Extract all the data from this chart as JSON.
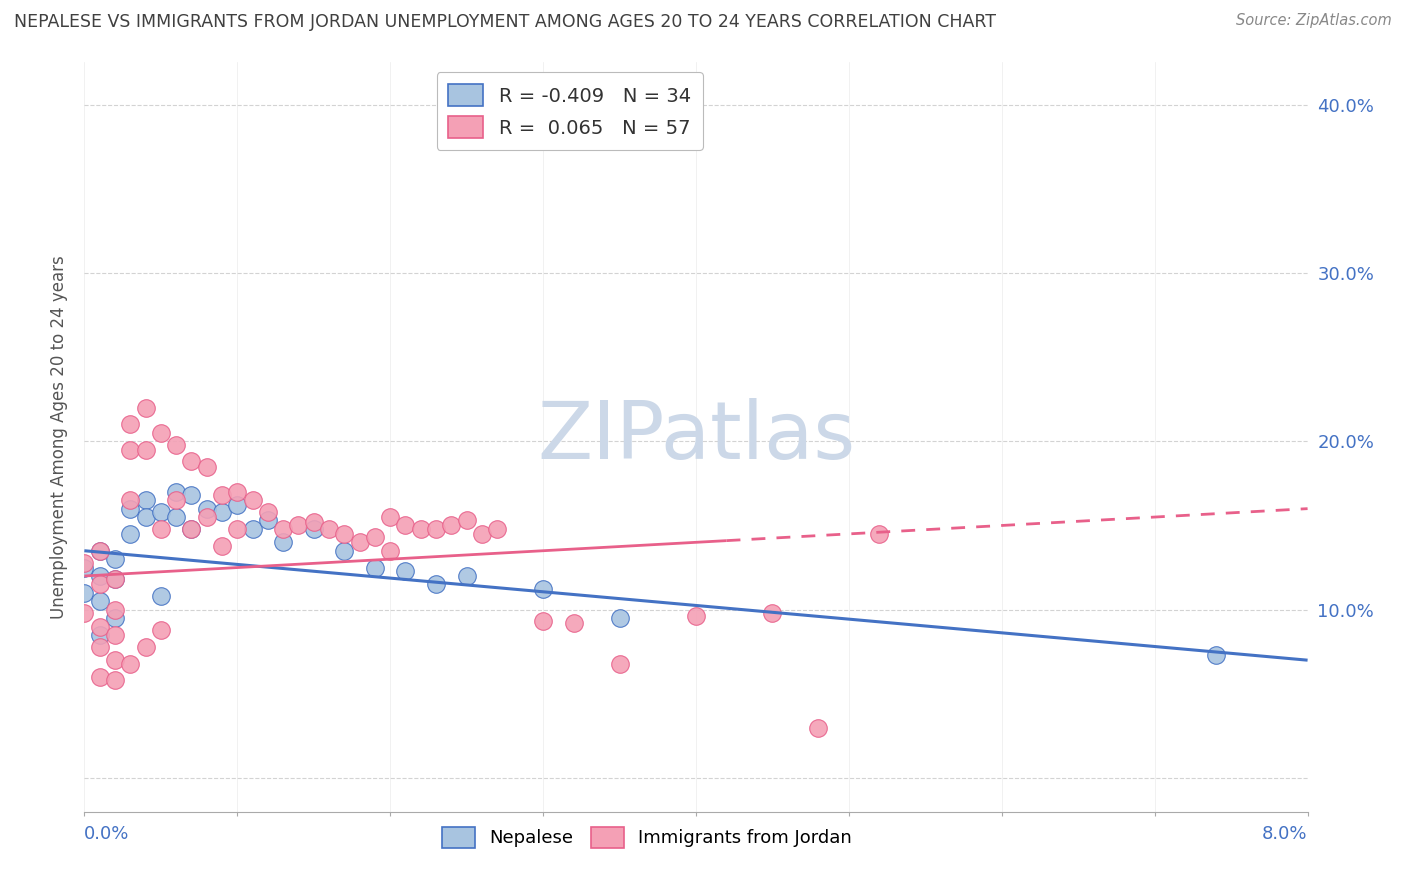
{
  "title": "NEPALESE VS IMMIGRANTS FROM JORDAN UNEMPLOYMENT AMONG AGES 20 TO 24 YEARS CORRELATION CHART",
  "source": "Source: ZipAtlas.com",
  "ylabel": "Unemployment Among Ages 20 to 24 years",
  "legend_label1": "Nepalese",
  "legend_label2": "Immigrants from Jordan",
  "r1": "-0.409",
  "n1": "34",
  "r2": "0.065",
  "n2": "57",
  "color_nepalese": "#a8c4e0",
  "color_jordan": "#f4a0b5",
  "color_nepalese_line": "#4472c4",
  "color_jordan_line": "#e8608a",
  "color_axis_labels": "#4472c4",
  "color_title": "#404040",
  "watermark_color": "#ccd8e8",
  "xlim": [
    0.0,
    0.08
  ],
  "ylim": [
    -0.02,
    0.425
  ],
  "ytick_vals": [
    0.0,
    0.1,
    0.2,
    0.3,
    0.4
  ],
  "nep_x": [
    0.0,
    0.0,
    0.001,
    0.001,
    0.001,
    0.001,
    0.002,
    0.002,
    0.002,
    0.003,
    0.003,
    0.004,
    0.004,
    0.005,
    0.005,
    0.006,
    0.006,
    0.007,
    0.007,
    0.008,
    0.009,
    0.01,
    0.011,
    0.012,
    0.013,
    0.015,
    0.017,
    0.019,
    0.021,
    0.023,
    0.025,
    0.03,
    0.035,
    0.074
  ],
  "nep_y": [
    0.125,
    0.11,
    0.135,
    0.12,
    0.105,
    0.085,
    0.13,
    0.118,
    0.095,
    0.16,
    0.145,
    0.165,
    0.155,
    0.158,
    0.108,
    0.17,
    0.155,
    0.168,
    0.148,
    0.16,
    0.158,
    0.162,
    0.148,
    0.153,
    0.14,
    0.148,
    0.135,
    0.125,
    0.123,
    0.115,
    0.12,
    0.112,
    0.095,
    0.073
  ],
  "jor_x": [
    0.0,
    0.0,
    0.001,
    0.001,
    0.001,
    0.001,
    0.001,
    0.002,
    0.002,
    0.002,
    0.002,
    0.002,
    0.003,
    0.003,
    0.003,
    0.003,
    0.004,
    0.004,
    0.004,
    0.005,
    0.005,
    0.005,
    0.006,
    0.006,
    0.007,
    0.007,
    0.008,
    0.008,
    0.009,
    0.009,
    0.01,
    0.01,
    0.011,
    0.012,
    0.013,
    0.014,
    0.015,
    0.016,
    0.017,
    0.018,
    0.019,
    0.02,
    0.02,
    0.021,
    0.022,
    0.023,
    0.024,
    0.025,
    0.026,
    0.027,
    0.03,
    0.032,
    0.035,
    0.04,
    0.045,
    0.048,
    0.052
  ],
  "jor_y": [
    0.128,
    0.098,
    0.135,
    0.115,
    0.09,
    0.078,
    0.06,
    0.118,
    0.1,
    0.085,
    0.07,
    0.058,
    0.21,
    0.195,
    0.165,
    0.068,
    0.22,
    0.195,
    0.078,
    0.205,
    0.148,
    0.088,
    0.198,
    0.165,
    0.188,
    0.148,
    0.185,
    0.155,
    0.168,
    0.138,
    0.17,
    0.148,
    0.165,
    0.158,
    0.148,
    0.15,
    0.152,
    0.148,
    0.145,
    0.14,
    0.143,
    0.155,
    0.135,
    0.15,
    0.148,
    0.148,
    0.15,
    0.153,
    0.145,
    0.148,
    0.093,
    0.092,
    0.068,
    0.096,
    0.098,
    0.03,
    0.145
  ],
  "nep_line_x": [
    0.0,
    0.08
  ],
  "nep_line_y": [
    0.135,
    0.07
  ],
  "jor_line_x": [
    0.0,
    0.08
  ],
  "jor_line_y": [
    0.12,
    0.16
  ]
}
